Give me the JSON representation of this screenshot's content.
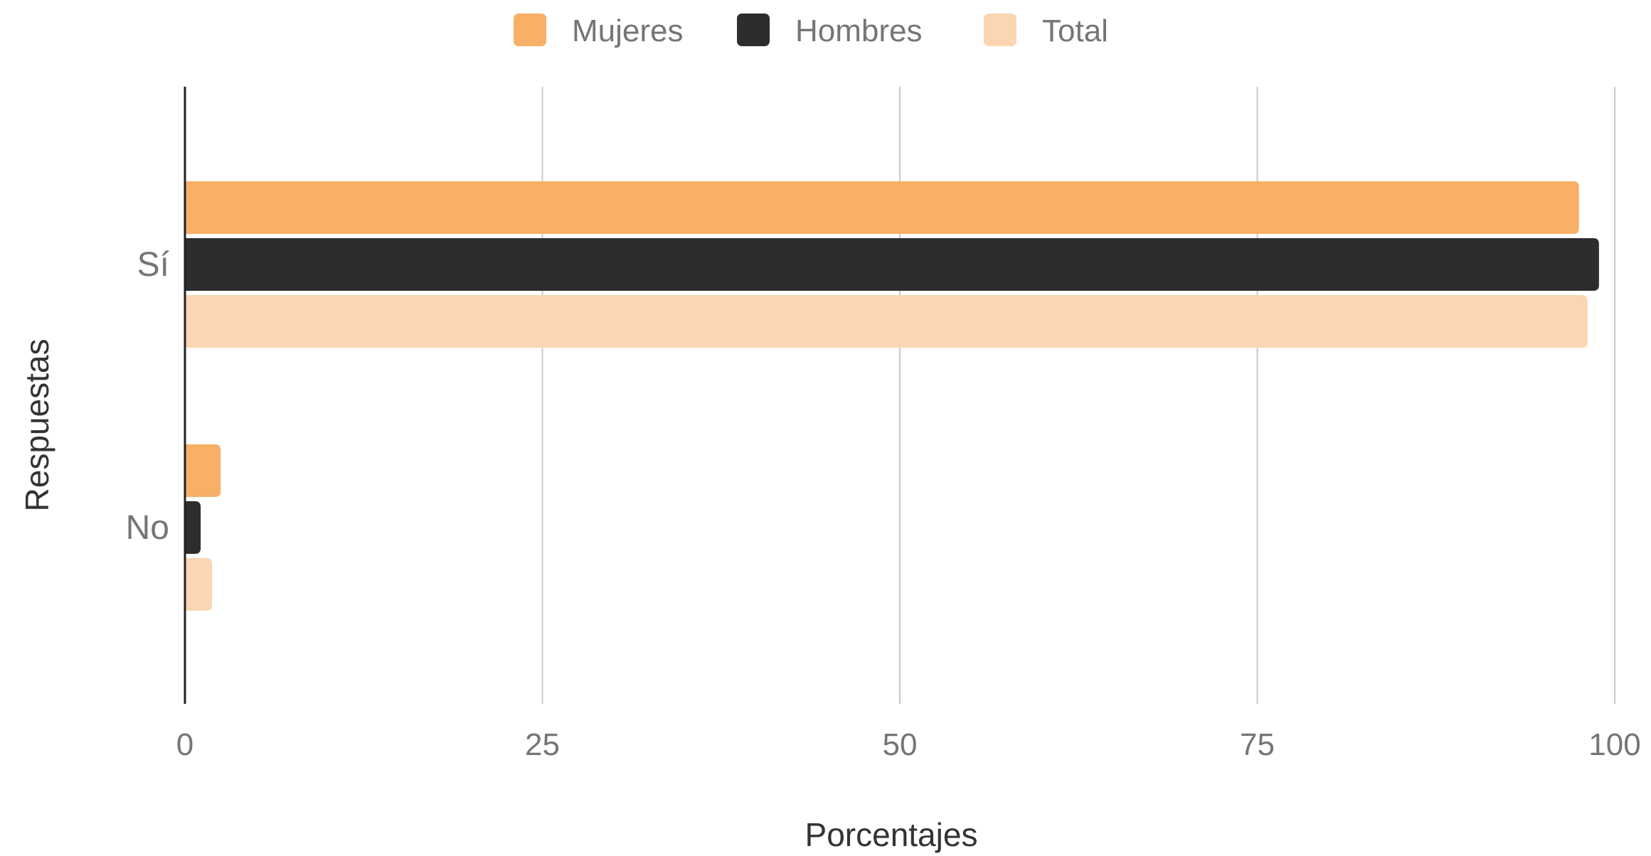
{
  "chart_data": {
    "type": "bar",
    "orientation": "horizontal",
    "title": "",
    "xlabel": "Porcentajes",
    "ylabel": "Respuestas",
    "xlim": [
      0,
      100
    ],
    "xticks": [
      "0",
      "25",
      "50",
      "75",
      "100"
    ],
    "xtick_values": [
      0,
      25,
      50,
      75,
      100
    ],
    "grid": true,
    "legend_position": "top",
    "categories": [
      "Sí",
      "No"
    ],
    "series": [
      {
        "name": "Mujeres",
        "color": "#F8AF66",
        "values": [
          97.5,
          2.5
        ]
      },
      {
        "name": "Hombres",
        "color": "#2D2D2D",
        "values": [
          98.9,
          1.1
        ]
      },
      {
        "name": "Total",
        "color": "#FAD6B2",
        "values": [
          98.1,
          1.9
        ]
      }
    ]
  }
}
